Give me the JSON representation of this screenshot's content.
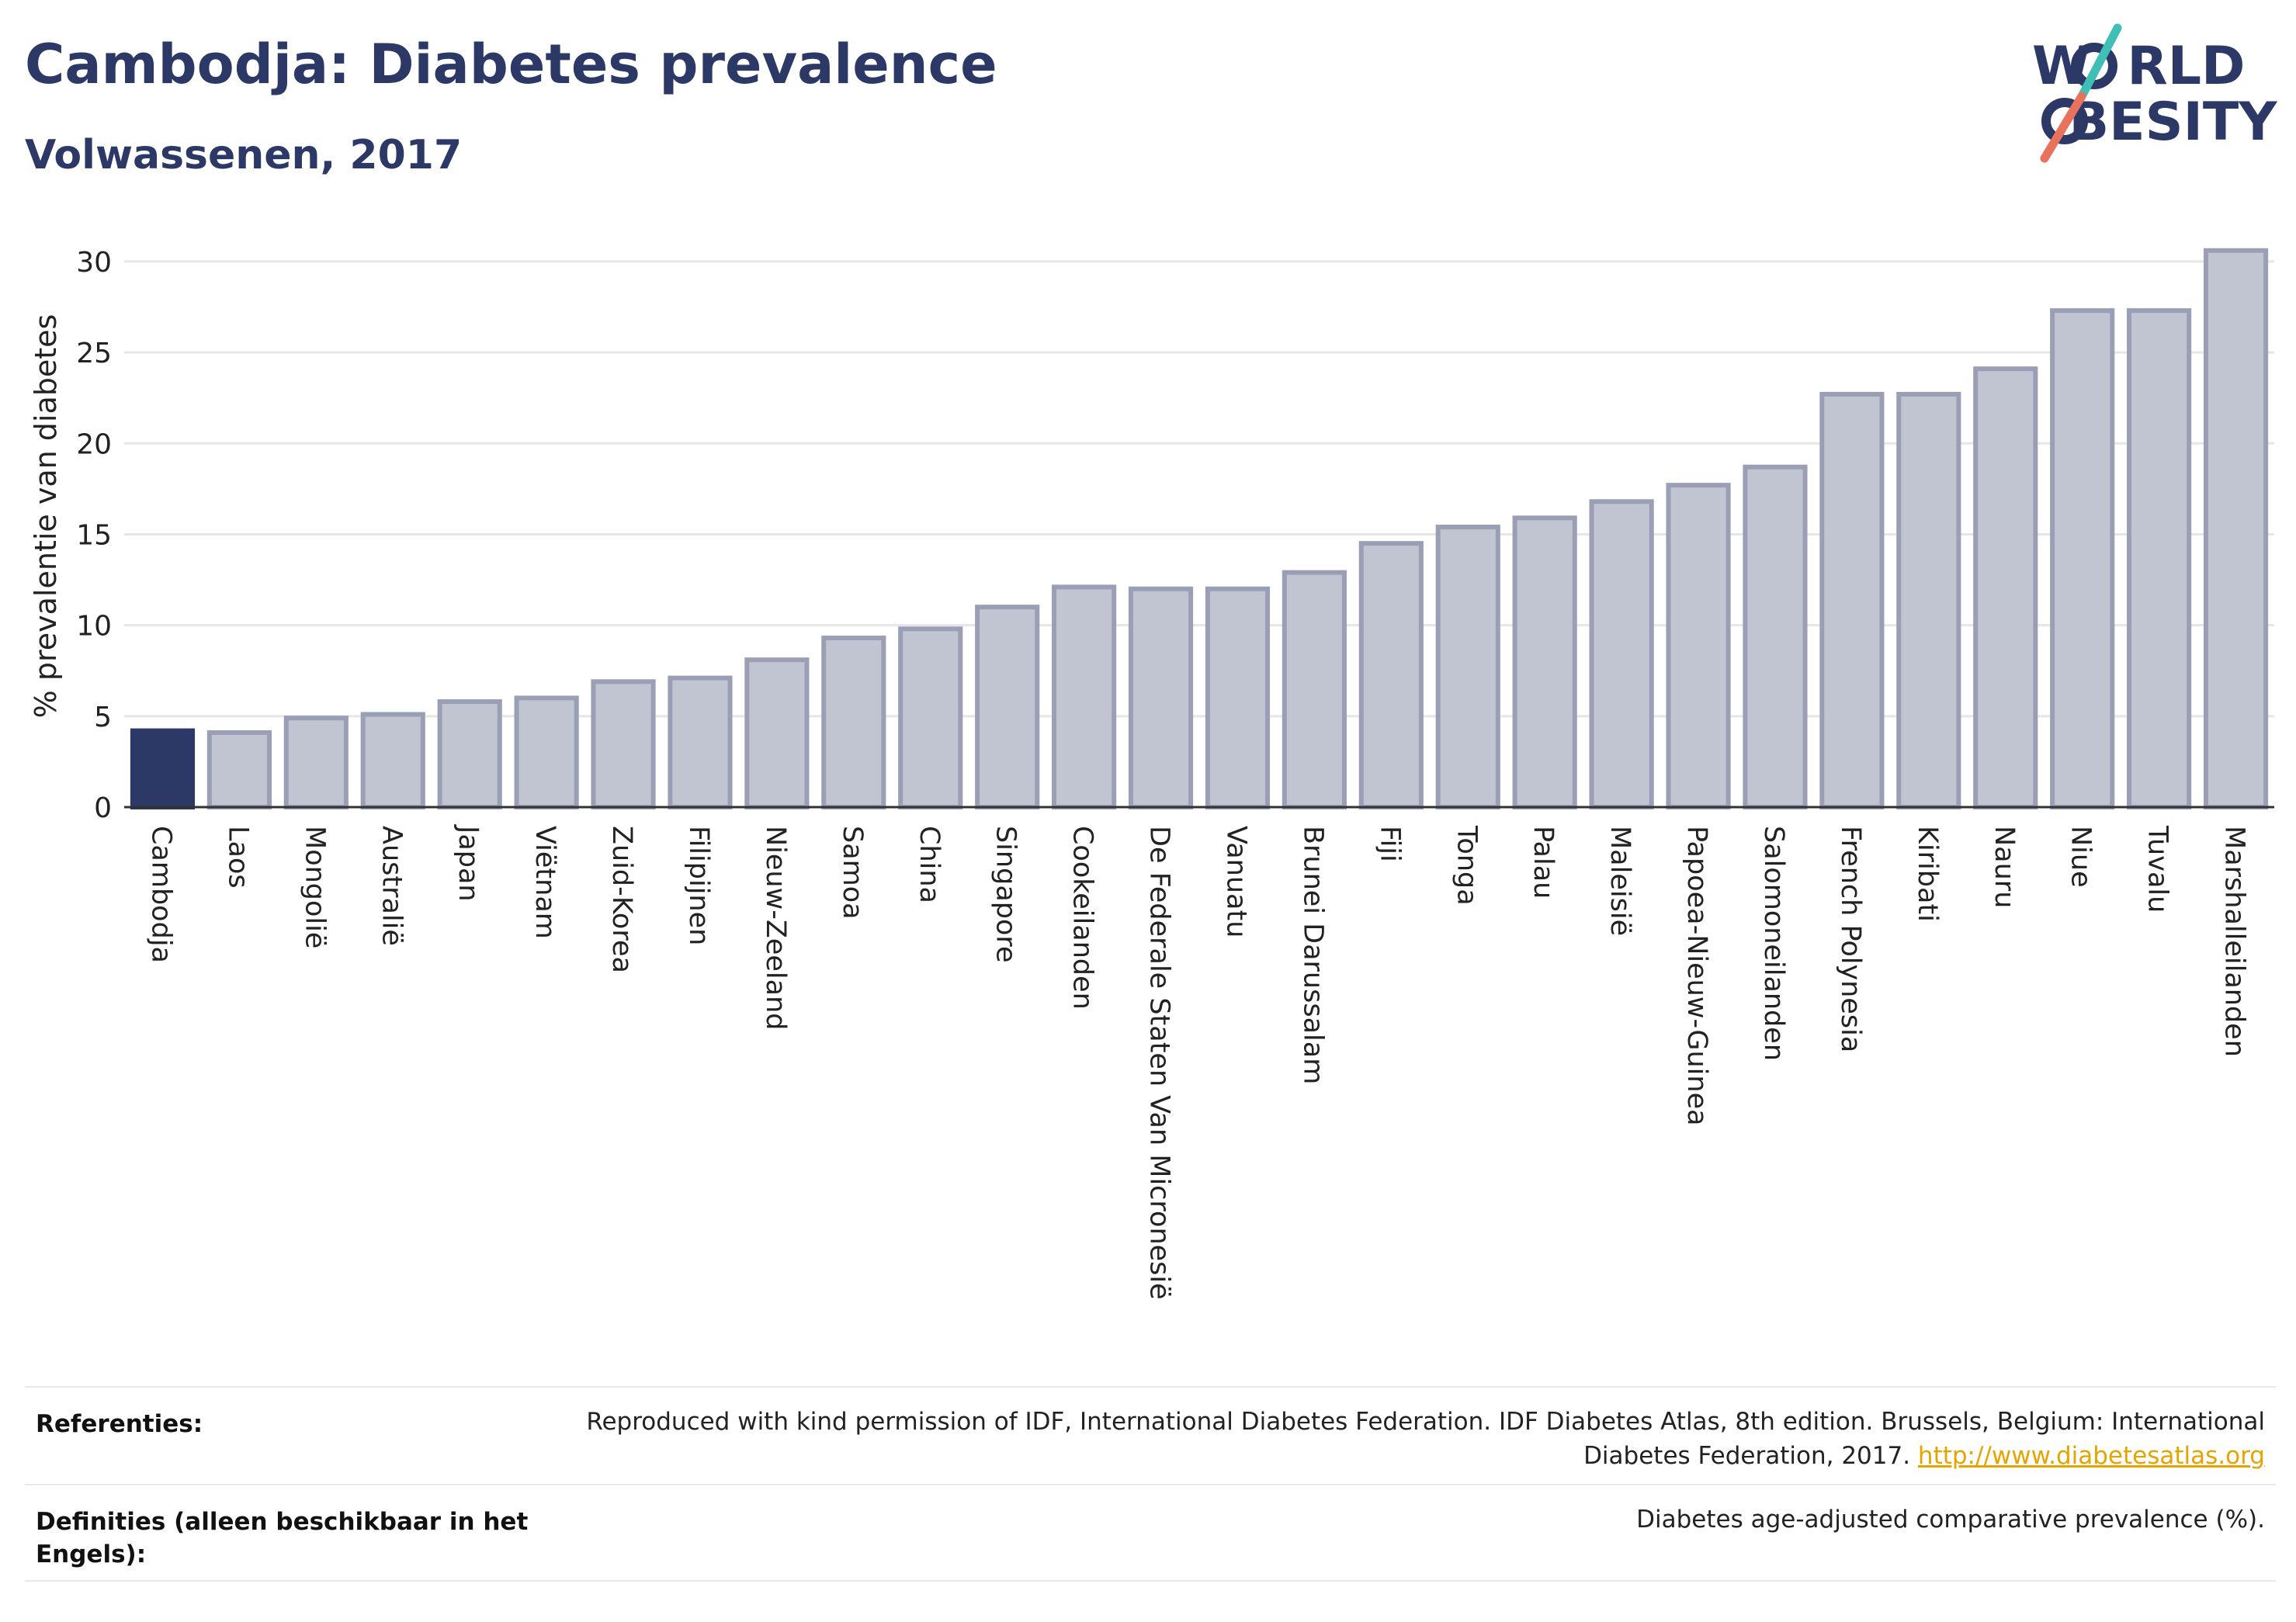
{
  "header": {
    "title": "Cambodja: Diabetes prevalence",
    "subtitle": "Volwassenen, 2017"
  },
  "logo": {
    "line1": "W  RLD",
    "line2": "  BESITY",
    "colors": {
      "text": "#2c3866",
      "slash_top": "#3fbfb5",
      "slash_bottom": "#e8725c"
    }
  },
  "chart_data": {
    "type": "bar",
    "ylabel": "% prevalentie van diabetes",
    "xlabel": "",
    "ylim": [
      0,
      32
    ],
    "yticks": [
      0,
      5,
      10,
      15,
      20,
      25,
      30
    ],
    "grid": true,
    "highlight": "Cambodja",
    "colors": {
      "highlight": "#2c3866",
      "bar_fill": "#c1c4d1",
      "bar_stroke": "#9a9fb6"
    },
    "categories": [
      "Cambodja",
      "Laos",
      "Mongolië",
      "Australië",
      "Japan",
      "Viëtnam",
      "Zuid-Korea",
      "Filipijnen",
      "Nieuw-Zeeland",
      "Samoa",
      "China",
      "Singapore",
      "Cookeilanden",
      "De Federale Staten Van Micronesië",
      "Vanuatu",
      "Brunei Darussalam",
      "Fiji",
      "Tonga",
      "Palau",
      "Maleisië",
      "Papoea-Nieuw-Guinea",
      "Salomoneilanden",
      "French Polynesia",
      "Kiribati",
      "Nauru",
      "Niue",
      "Tuvalu",
      "Marshalleilanden"
    ],
    "values": [
      4.2,
      4.1,
      4.9,
      5.1,
      5.8,
      6.0,
      6.9,
      7.1,
      8.1,
      9.3,
      9.8,
      11.0,
      12.1,
      12.0,
      12.0,
      12.9,
      14.5,
      15.4,
      15.9,
      16.8,
      17.7,
      18.7,
      22.7,
      22.7,
      24.1,
      27.3,
      27.3,
      30.6
    ]
  },
  "footer": {
    "references_label": "Referenties:",
    "references_text": "Reproduced with kind permission of IDF, International Diabetes Federation. IDF Diabetes Atlas, 8th edition. Brussels, Belgium: International Diabetes Federation, 2017.",
    "references_link": "http://www.diabetesatlas.org",
    "definitions_label": "Definities (alleen beschikbaar in het Engels):",
    "definitions_text": "Diabetes age-adjusted comparative prevalence (%)."
  }
}
